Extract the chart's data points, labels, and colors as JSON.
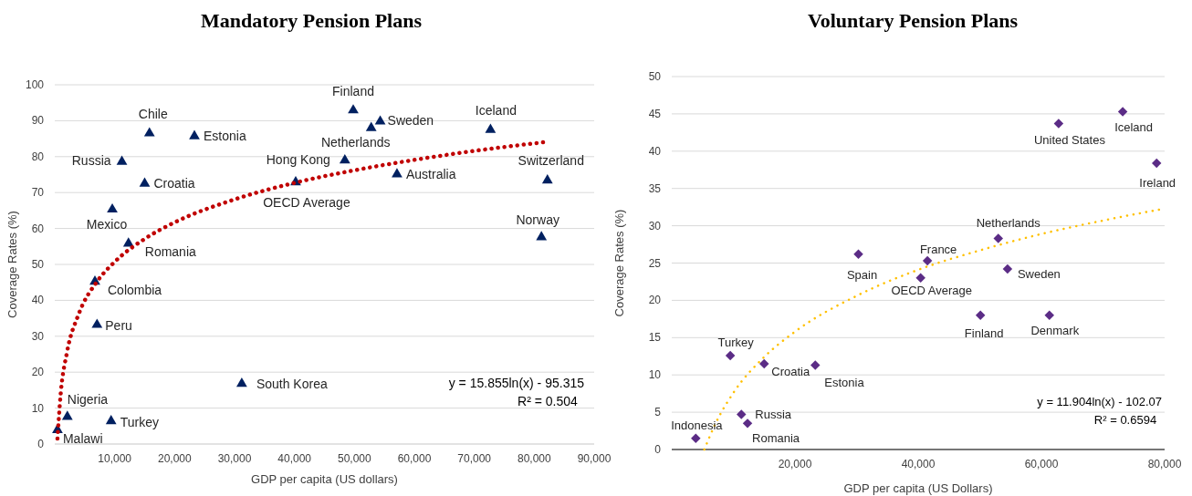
{
  "chart_data": [
    {
      "type": "scatter",
      "title": "Mandatory Pension Plans",
      "xlabel": "GDP per capita (US dollars)",
      "ylabel": "Coverage Rates (%)",
      "xlim": [
        0,
        90000
      ],
      "xticks": [
        {
          "value": 10000,
          "label": "10,000"
        },
        {
          "value": 20000,
          "label": "20,000"
        },
        {
          "value": 30000,
          "label": "30,000"
        },
        {
          "value": 40000,
          "label": "40,000"
        },
        {
          "value": 50000,
          "label": "50,000"
        },
        {
          "value": 60000,
          "label": "60,000"
        },
        {
          "value": 70000,
          "label": "70,000"
        },
        {
          "value": 80000,
          "label": "80,000"
        },
        {
          "value": 90000,
          "label": "90,000"
        }
      ],
      "ylim": [
        0,
        100
      ],
      "yticks": [
        0,
        10,
        20,
        30,
        40,
        50,
        60,
        70,
        80,
        90,
        100
      ],
      "grid": "y",
      "series": [
        {
          "color": "#002060",
          "marker": "triangle",
          "x": [
            450,
            2100,
            9400,
            7050,
            6700,
            12300,
            9600,
            15000,
            11200,
            15800,
            23300,
            31200,
            40200,
            48400,
            49800,
            52800,
            54300,
            57100,
            72700,
            81200,
            82200
          ],
          "values": [
            3.9,
            7.6,
            6.4,
            33.2,
            45.2,
            55.8,
            65.3,
            72.5,
            78.6,
            86.5,
            85.7,
            16.8,
            72.9,
            79.0,
            92.9,
            88.0,
            89.8,
            75.1,
            87.5,
            57.6,
            73.4
          ]
        },
        {
          "type": "line",
          "color": "#c00000",
          "line_style": "dotted",
          "x": [
            450,
            1000,
            2000,
            4000,
            7000,
            10000,
            15000,
            20000,
            30000,
            40000,
            50000,
            60000,
            70000,
            82000
          ],
          "values": [
            1.5,
            14.2,
            25.2,
            36.2,
            45.1,
            50.7,
            57.1,
            61.7,
            68.1,
            72.7,
            76.2,
            79.1,
            81.6,
            84.1
          ]
        }
      ],
      "annotations": [
        {
          "text": "Malawi",
          "x": 450,
          "y": 3.9
        },
        {
          "text": "Nigeria",
          "x": 2100,
          "y": 7.6
        },
        {
          "text": "Turkey",
          "x": 9400,
          "y": 6.4
        },
        {
          "text": "Peru",
          "x": 7050,
          "y": 33.2
        },
        {
          "text": "Colombia",
          "x": 6700,
          "y": 45.2
        },
        {
          "text": "Romania",
          "x": 12300,
          "y": 55.8
        },
        {
          "text": "Mexico",
          "x": 9600,
          "y": 65.3
        },
        {
          "text": "Croatia",
          "x": 15000,
          "y": 72.5
        },
        {
          "text": "Russia",
          "x": 11200,
          "y": 78.6
        },
        {
          "text": "Chile",
          "x": 15800,
          "y": 86.5
        },
        {
          "text": "Estonia",
          "x": 23300,
          "y": 85.7
        },
        {
          "text": "South Korea",
          "x": 31200,
          "y": 16.8
        },
        {
          "text": "OECD Average",
          "x": 40200,
          "y": 72.9
        },
        {
          "text": "Hong Kong",
          "x": 48400,
          "y": 79.0
        },
        {
          "text": "Finland",
          "x": 49800,
          "y": 92.9
        },
        {
          "text": "Netherlands",
          "x": 52800,
          "y": 88.0
        },
        {
          "text": "Sweden",
          "x": 54300,
          "y": 89.8
        },
        {
          "text": "Australia",
          "x": 57100,
          "y": 75.1
        },
        {
          "text": "Iceland",
          "x": 72700,
          "y": 87.5
        },
        {
          "text": "Norway",
          "x": 81200,
          "y": 57.6
        },
        {
          "text": "Switzerland",
          "x": 82200,
          "y": 73.4
        },
        "y = 15.855ln(x) - 95.315",
        "R² = 0.504"
      ]
    },
    {
      "type": "scatter",
      "title": "Voluntary Pension Plans",
      "xlabel": "GDP per capita (US Dollars)",
      "ylabel": "Coverage Rates (%)",
      "xlim": [
        0,
        80000
      ],
      "xticks": [
        {
          "value": 20000,
          "label": "20,000"
        },
        {
          "value": 40000,
          "label": "40,000"
        },
        {
          "value": 60000,
          "label": "60,000"
        },
        {
          "value": 80000,
          "label": "80,000"
        }
      ],
      "ylim": [
        0,
        50
      ],
      "yticks": [
        0,
        5,
        10,
        15,
        20,
        25,
        30,
        35,
        40,
        45,
        50
      ],
      "grid": "y",
      "series": [
        {
          "color": "#5b2c86",
          "marker": "diamond",
          "x": [
            3900,
            9500,
            11300,
            12300,
            15000,
            23300,
            30300,
            40400,
            41500,
            50100,
            53000,
            54500,
            61300,
            62800,
            73200,
            78700
          ],
          "values": [
            1.5,
            12.6,
            4.7,
            3.5,
            11.5,
            11.3,
            26.2,
            23.0,
            25.3,
            18.0,
            28.3,
            24.2,
            18.0,
            43.7,
            45.3,
            38.4
          ]
        },
        {
          "type": "line",
          "color": "#ffc000",
          "line_style": "dotted",
          "x": [
            5290,
            7000,
            10000,
            15000,
            20000,
            30000,
            40000,
            50000,
            60000,
            70000,
            80000
          ],
          "values": [
            0,
            3.3,
            7.6,
            12.4,
            15.8,
            20.6,
            24.1,
            26.7,
            28.9,
            30.7,
            32.3
          ]
        }
      ],
      "annotations": [
        {
          "text": "Indonesia",
          "x": 3900,
          "y": 1.5
        },
        {
          "text": "Turkey",
          "x": 9500,
          "y": 12.6
        },
        {
          "text": "Russia",
          "x": 11300,
          "y": 4.7
        },
        {
          "text": "Romania",
          "x": 12300,
          "y": 3.5
        },
        {
          "text": "Croatia",
          "x": 15000,
          "y": 11.5
        },
        {
          "text": "Estonia",
          "x": 23300,
          "y": 11.3
        },
        {
          "text": "Spain",
          "x": 30300,
          "y": 26.2
        },
        {
          "text": "OECD Average",
          "x": 40400,
          "y": 23.0
        },
        {
          "text": "France",
          "x": 41500,
          "y": 25.3
        },
        {
          "text": "Finland",
          "x": 50100,
          "y": 18.0
        },
        {
          "text": "Netherlands",
          "x": 53000,
          "y": 28.3
        },
        {
          "text": "Sweden",
          "x": 54500,
          "y": 24.2
        },
        {
          "text": "Denmark",
          "x": 61300,
          "y": 18.0
        },
        {
          "text": "United States",
          "x": 62800,
          "y": 43.7
        },
        {
          "text": "Iceland",
          "x": 73200,
          "y": 45.3
        },
        {
          "text": "Ireland",
          "x": 78700,
          "y": 38.4
        },
        "y = 11.904ln(x) - 102.07",
        "R² = 0.6594"
      ]
    }
  ]
}
